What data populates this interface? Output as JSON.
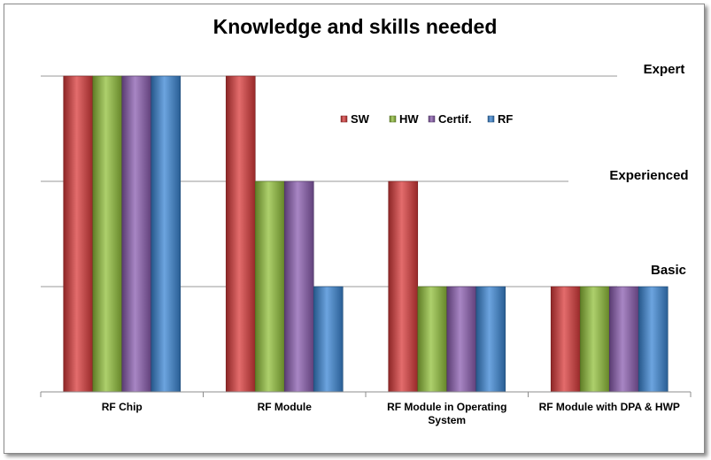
{
  "chart_data": {
    "type": "bar",
    "title": "Knowledge and skills needed",
    "xlabel": "",
    "ylabel": "",
    "levels": [
      "Basic",
      "Experienced",
      "Expert"
    ],
    "ylim": [
      0,
      3
    ],
    "grid": true,
    "legend_position": "top-right",
    "categories": [
      [
        "RF Chip"
      ],
      [
        "RF Module"
      ],
      [
        "RF Module in Operating",
        "System"
      ],
      [
        "RF Module with DPA & HWP"
      ]
    ],
    "series": [
      {
        "name": "SW",
        "color": "#d93b3b",
        "values": [
          3,
          3,
          2,
          1
        ]
      },
      {
        "name": "HW",
        "color": "#92c03b",
        "values": [
          3,
          2,
          1,
          1
        ]
      },
      {
        "name": "Certif.",
        "color": "#8b5db0",
        "values": [
          3,
          2,
          1,
          1
        ]
      },
      {
        "name": "RF",
        "color": "#3b86d4",
        "values": [
          3,
          1,
          1,
          1
        ]
      }
    ]
  }
}
